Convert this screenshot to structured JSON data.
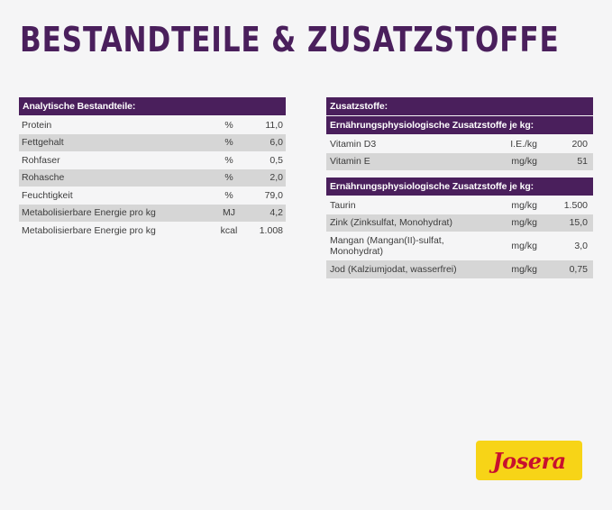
{
  "title": "BESTANDTEILE & ZUSATZSTOFFE",
  "analytics": {
    "header": "Analytische Bestandteile:",
    "rows": [
      {
        "name": "Protein",
        "unit": "%",
        "value": "11,0"
      },
      {
        "name": "Fettgehalt",
        "unit": "%",
        "value": "6,0"
      },
      {
        "name": "Rohfaser",
        "unit": "%",
        "value": "0,5"
      },
      {
        "name": "Rohasche",
        "unit": "%",
        "value": "2,0"
      },
      {
        "name": "Feuchtigkeit",
        "unit": "%",
        "value": "79,0"
      },
      {
        "name": "Metabolisierbare Energie pro kg",
        "unit": "MJ",
        "value": "4,2"
      },
      {
        "name": "Metabolisierbare Energie pro kg",
        "unit": "kcal",
        "value": "1.008"
      }
    ]
  },
  "additives": {
    "header": "Zusatzstoffe:",
    "section1": {
      "header": "Ernährungsphysiologische Zusatzstoffe je kg:",
      "rows": [
        {
          "name": "Vitamin D3",
          "unit": "I.E./kg",
          "value": "200"
        },
        {
          "name": "Vitamin E",
          "unit": "mg/kg",
          "value": "51"
        }
      ]
    },
    "section2": {
      "header": "Ernährungsphysiologische Zusatzstoffe je kg:",
      "rows": [
        {
          "name": "Taurin",
          "unit": "mg/kg",
          "value": "1.500"
        },
        {
          "name": "Zink (Zinksulfat, Monohydrat)",
          "unit": "mg/kg",
          "value": "15,0"
        },
        {
          "name": "Mangan (Mangan(II)-sulfat, Monohydrat)",
          "unit": "mg/kg",
          "value": "3,0"
        },
        {
          "name": "Jod (Kalziumjodat, wasserfrei)",
          "unit": "mg/kg",
          "value": "0,75"
        }
      ]
    }
  },
  "logo": {
    "text": "Josera"
  },
  "colors": {
    "brand_purple": "#4a1f5c",
    "row_grey": "#d6d6d6",
    "logo_yellow": "#f7d417",
    "logo_red": "#c8102e"
  }
}
